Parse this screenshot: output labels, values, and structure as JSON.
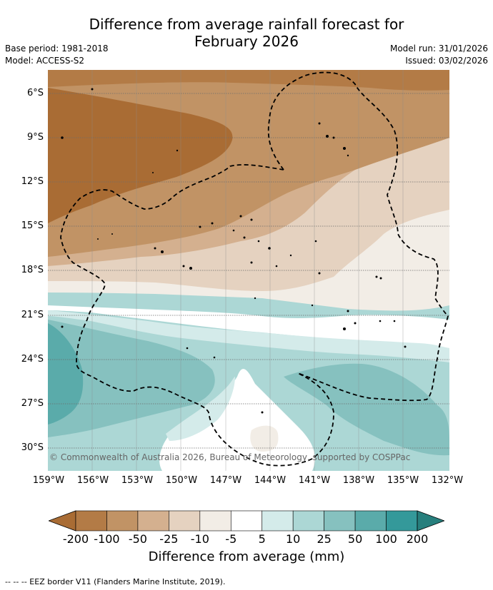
{
  "title": "Difference from average rainfall forecast for February 2026",
  "title_line1": "Difference from average rainfall forecast for",
  "title_line2": "February 2026",
  "base_period": "Base period: 1981-2018",
  "model": "Model: ACCESS-S2",
  "model_run": "Model run: 31/01/2026",
  "issued": "Issued: 03/02/2026",
  "copyright": "© Commonwealth of Australia 2026, Bureau of Meteorology, supported by COSPPac",
  "footer": "--  --  -- EEZ border V11 (Flanders Marine Institute, 2019).",
  "map": {
    "lat_labels": [
      "6°S",
      "9°S",
      "12°S",
      "15°S",
      "18°S",
      "21°S",
      "24°S",
      "27°S",
      "30°S"
    ],
    "lon_labels": [
      "159°W",
      "156°W",
      "153°W",
      "150°W",
      "147°W",
      "144°W",
      "141°W",
      "138°W",
      "135°W",
      "132°W"
    ],
    "lat_range": [
      -31.5,
      -4.4
    ],
    "lon_range": [
      -159,
      -132
    ]
  },
  "colorbar": {
    "title": "Difference from average (mm)",
    "labels": [
      "-200",
      "-100",
      "-50",
      "-25",
      "-10",
      "-5",
      "5",
      "10",
      "25",
      "50",
      "100",
      "200"
    ],
    "colors": [
      "#a96c34",
      "#b37b46",
      "#c19365",
      "#d4b08f",
      "#e5d2c0",
      "#f2ede6",
      "#ffffff",
      "#d4ebea",
      "#acd7d5",
      "#86c1bf",
      "#5aabaa",
      "#34999a",
      "#277f7d"
    ]
  }
}
